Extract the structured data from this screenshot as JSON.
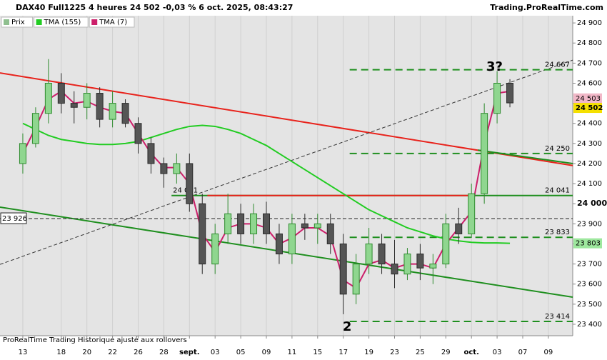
{
  "chart_data": {
    "type": "candlestick",
    "title": "DAX40 Full1225 4 heures 24 502 -0,03 % 6 oct. 2025, 08:43:27",
    "source": "Trading.ProRealTime.com",
    "footer": "ProRealTime Trading  Historique ajusté aux rollovers",
    "xlim": [
      -1.78,
      42.9
    ],
    "ylim": [
      23343,
      24936
    ],
    "xticks": [
      {
        "value": 0,
        "label": "13"
      },
      {
        "value": 3,
        "label": "18"
      },
      {
        "value": 5,
        "label": "20"
      },
      {
        "value": 7,
        "label": "22"
      },
      {
        "value": 9,
        "label": "26"
      },
      {
        "value": 11,
        "label": "28"
      },
      {
        "value": 13,
        "label": "sept."
      },
      {
        "value": 15,
        "label": "03"
      },
      {
        "value": 17,
        "label": "05"
      },
      {
        "value": 19,
        "label": "09"
      },
      {
        "value": 21,
        "label": "11"
      },
      {
        "value": 23,
        "label": "15"
      },
      {
        "value": 25,
        "label": "17"
      },
      {
        "value": 27,
        "label": "19"
      },
      {
        "value": 29,
        "label": "23"
      },
      {
        "value": 31,
        "label": "25"
      },
      {
        "value": 33,
        "label": "29"
      },
      {
        "value": 35,
        "label": "oct."
      },
      {
        "value": 37,
        "label": "03"
      },
      {
        "value": 39,
        "label": "07"
      },
      {
        "value": 41,
        "label": "09"
      }
    ],
    "yticks": [
      {
        "value": 23400,
        "label": "23 400"
      },
      {
        "value": 23500,
        "label": "23 500"
      },
      {
        "value": 23600,
        "label": "23 600"
      },
      {
        "value": 23700,
        "label": "23 700"
      },
      {
        "value": 23800,
        "label": "23 800"
      },
      {
        "value": 23900,
        "label": "23 900"
      },
      {
        "value": 24000,
        "label": "24 000"
      },
      {
        "value": 24100,
        "label": "24 100"
      },
      {
        "value": 24200,
        "label": "24 200"
      },
      {
        "value": 24300,
        "label": "24 300"
      },
      {
        "value": 24400,
        "label": "24 400"
      },
      {
        "value": 24500,
        "label": "24 500"
      },
      {
        "value": 24600,
        "label": "24 600"
      },
      {
        "value": 24700,
        "label": "24 700"
      },
      {
        "value": 24800,
        "label": "24 800"
      },
      {
        "value": 24900,
        "label": "24 900"
      }
    ],
    "legend": [
      {
        "name": "Prix",
        "color": "#8fbf8f"
      },
      {
        "name": "TMA (155)",
        "color": "#22cc22"
      },
      {
        "name": "TMA (7)",
        "color": "#cc1f6a"
      }
    ],
    "x": [
      0,
      1,
      2,
      3,
      4,
      5,
      6,
      7,
      8,
      9,
      10,
      11,
      12,
      13,
      14,
      15,
      16,
      17,
      18,
      19,
      20,
      21,
      22,
      23,
      24,
      25,
      26,
      27,
      28,
      29,
      30,
      31,
      32,
      33,
      34,
      35,
      36,
      37,
      38
    ],
    "open": [
      24200,
      24300,
      24450,
      24600,
      24500,
      24480,
      24550,
      24420,
      24500,
      24400,
      24300,
      24200,
      24150,
      24200,
      24000,
      23700,
      23850,
      23950,
      23850,
      23950,
      23850,
      23750,
      23900,
      23880,
      23900,
      23800,
      23550,
      23700,
      23800,
      23700,
      23650,
      23750,
      23680,
      23700,
      23900,
      23850,
      24050,
      24450,
      24600
    ],
    "high": [
      24350,
      24480,
      24720,
      24650,
      24560,
      24600,
      24580,
      24560,
      24520,
      24430,
      24330,
      24230,
      24250,
      24250,
      24050,
      23900,
      24050,
      24000,
      24000,
      24010,
      23900,
      23950,
      23950,
      23950,
      23950,
      23850,
      23750,
      23880,
      23850,
      23820,
      23780,
      23800,
      23750,
      23950,
      23980,
      24100,
      24500,
      24660,
      24620
    ],
    "low": [
      24150,
      24280,
      24400,
      24450,
      24400,
      24420,
      24380,
      24380,
      24380,
      24250,
      24150,
      24080,
      24100,
      23960,
      23650,
      23650,
      23800,
      23800,
      23800,
      23800,
      23700,
      23700,
      23820,
      23800,
      23750,
      23450,
      23500,
      23650,
      23650,
      23580,
      23620,
      23620,
      23600,
      23680,
      23800,
      23830,
      24000,
      24400,
      24480
    ],
    "close": [
      24300,
      24450,
      24600,
      24500,
      24480,
      24550,
      24420,
      24500,
      24400,
      24300,
      24200,
      24150,
      24200,
      24000,
      23700,
      23850,
      23950,
      23850,
      23950,
      23850,
      23750,
      23900,
      23880,
      23900,
      23800,
      23550,
      23700,
      23800,
      23700,
      23650,
      23750,
      23680,
      23700,
      23900,
      23850,
      24050,
      24450,
      24600,
      24502
    ],
    "up_color": "#2e8b2e",
    "down_color": "#2b2b2b",
    "series": [
      {
        "name": "TMA (155)",
        "color": "#22cc22",
        "values": [
          24400,
          24370,
          24340,
          24320,
          24310,
          24300,
          24295,
          24295,
          24300,
          24310,
          24330,
          24350,
          24370,
          24385,
          24390,
          24385,
          24370,
          24350,
          24320,
          24290,
          24250,
          24210,
          24170,
          24130,
          24090,
          24050,
          24010,
          23970,
          23940,
          23910,
          23880,
          23860,
          23840,
          23825,
          23815,
          23808,
          23805,
          23805,
          23803
        ]
      },
      {
        "name": "TMA (7)",
        "color": "#cc1f6a",
        "values": [
          24250,
          24380,
          24520,
          24560,
          24500,
          24510,
          24480,
          24460,
          24450,
          24350,
          24250,
          24180,
          24180,
          24100,
          23850,
          23760,
          23880,
          23900,
          23900,
          23880,
          23800,
          23830,
          23880,
          23880,
          23840,
          23620,
          23580,
          23700,
          23720,
          23680,
          23700,
          23700,
          23680,
          23800,
          23880,
          23960,
          24300,
          24550,
          24560
        ]
      }
    ],
    "trendlines": [
      {
        "color": "#e8231c",
        "dash": false,
        "x": [
          -1.78,
          42.9
        ],
        "y": [
          24651,
          24190
        ]
      },
      {
        "color": "#1f8f1f",
        "dash": false,
        "x": [
          -1.78,
          42.9
        ],
        "y": [
          23983,
          23535
        ]
      },
      {
        "color": "#1f8f1f",
        "dash": false,
        "x": [
          35.5,
          42.9
        ],
        "y": [
          24267,
          24200
        ]
      },
      {
        "color": "#333333",
        "dash": true,
        "x": [
          -1.78,
          42.9
        ],
        "y": [
          23698,
          24715
        ]
      }
    ],
    "levels": [
      {
        "value": 24667,
        "label": "24 667",
        "from": 25.5,
        "color": "#1f8f1f"
      },
      {
        "value": 24250,
        "label": "24 250",
        "from": 25.5,
        "color": "#1f8f1f"
      },
      {
        "value": 23833,
        "label": "23 833",
        "from": 25.5,
        "color": "#1f8f1f"
      },
      {
        "value": 23414,
        "label": "23 414",
        "from": 25.5,
        "color": "#1f8f1f"
      }
    ],
    "solid_levels": [
      {
        "value": 24041,
        "label": "24 041",
        "from": 11.6,
        "color": "#1f8f1f"
      },
      {
        "value": 24041,
        "from": 14.4,
        "to": 35.0,
        "color": "#e8231c"
      }
    ],
    "dashed_level": {
      "value": 23926,
      "label": "23 926"
    },
    "price_tags": [
      {
        "value": 24503,
        "label": "24 503",
        "color": "#f2b8c8"
      },
      {
        "value": 24502,
        "label": "24 502",
        "color": "#f5e000"
      },
      {
        "value": 23803,
        "label": "23 803",
        "color": "#9ee89e"
      }
    ],
    "annotations": [
      {
        "text": "3?",
        "x": 36.8,
        "y": 24680
      },
      {
        "text": "2",
        "x": 25.3,
        "y": 23385
      }
    ]
  }
}
